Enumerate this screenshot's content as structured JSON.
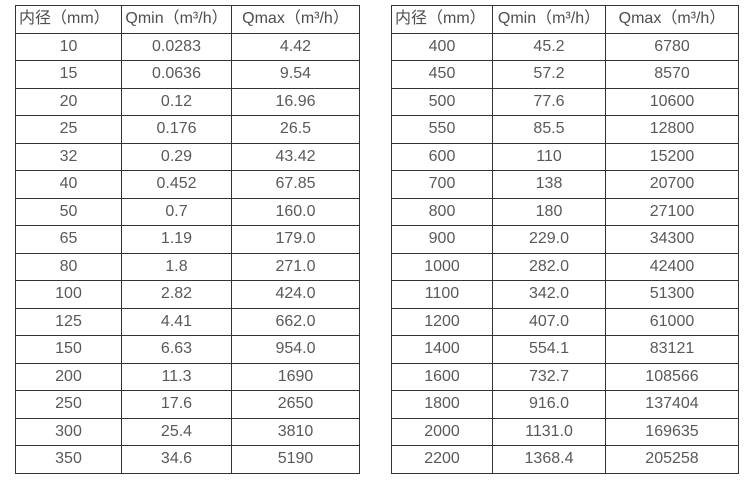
{
  "colors": {
    "background": "#ffffff",
    "border": "#333333",
    "text": "#58595b"
  },
  "tables": [
    {
      "name": "flow-table-small-diameters",
      "headers": [
        "内径（mm）",
        "Qmin（m³/h）",
        "Qmax（m³/h）"
      ],
      "rows": [
        [
          "10",
          "0.0283",
          "4.42"
        ],
        [
          "15",
          "0.0636",
          "9.54"
        ],
        [
          "20",
          "0.12",
          "16.96"
        ],
        [
          "25",
          "0.176",
          "26.5"
        ],
        [
          "32",
          "0.29",
          "43.42"
        ],
        [
          "40",
          "0.452",
          "67.85"
        ],
        [
          "50",
          "0.7",
          "160.0"
        ],
        [
          "65",
          "1.19",
          "179.0"
        ],
        [
          "80",
          "1.8",
          "271.0"
        ],
        [
          "100",
          "2.82",
          "424.0"
        ],
        [
          "125",
          "4.41",
          "662.0"
        ],
        [
          "150",
          "6.63",
          "954.0"
        ],
        [
          "200",
          "11.3",
          "1690"
        ],
        [
          "250",
          "17.6",
          "2650"
        ],
        [
          "300",
          "25.4",
          "3810"
        ],
        [
          "350",
          "34.6",
          "5190"
        ]
      ]
    },
    {
      "name": "flow-table-large-diameters",
      "headers": [
        "内径（mm）",
        "Qmin（m³/h）",
        "Qmax（m³/h）"
      ],
      "rows": [
        [
          "400",
          "45.2",
          "6780"
        ],
        [
          "450",
          "57.2",
          "8570"
        ],
        [
          "500",
          "77.6",
          "10600"
        ],
        [
          "550",
          "85.5",
          "12800"
        ],
        [
          "600",
          "110",
          "15200"
        ],
        [
          "700",
          "138",
          "20700"
        ],
        [
          "800",
          "180",
          "27100"
        ],
        [
          "900",
          "229.0",
          "34300"
        ],
        [
          "1000",
          "282.0",
          "42400"
        ],
        [
          "1100",
          "342.0",
          "51300"
        ],
        [
          "1200",
          "407.0",
          "61000"
        ],
        [
          "1400",
          "554.1",
          "83121"
        ],
        [
          "1600",
          "732.7",
          "108566"
        ],
        [
          "1800",
          "916.0",
          "137404"
        ],
        [
          "2000",
          "1131.0",
          "169635"
        ],
        [
          "2200",
          "1368.4",
          "205258"
        ]
      ]
    }
  ]
}
